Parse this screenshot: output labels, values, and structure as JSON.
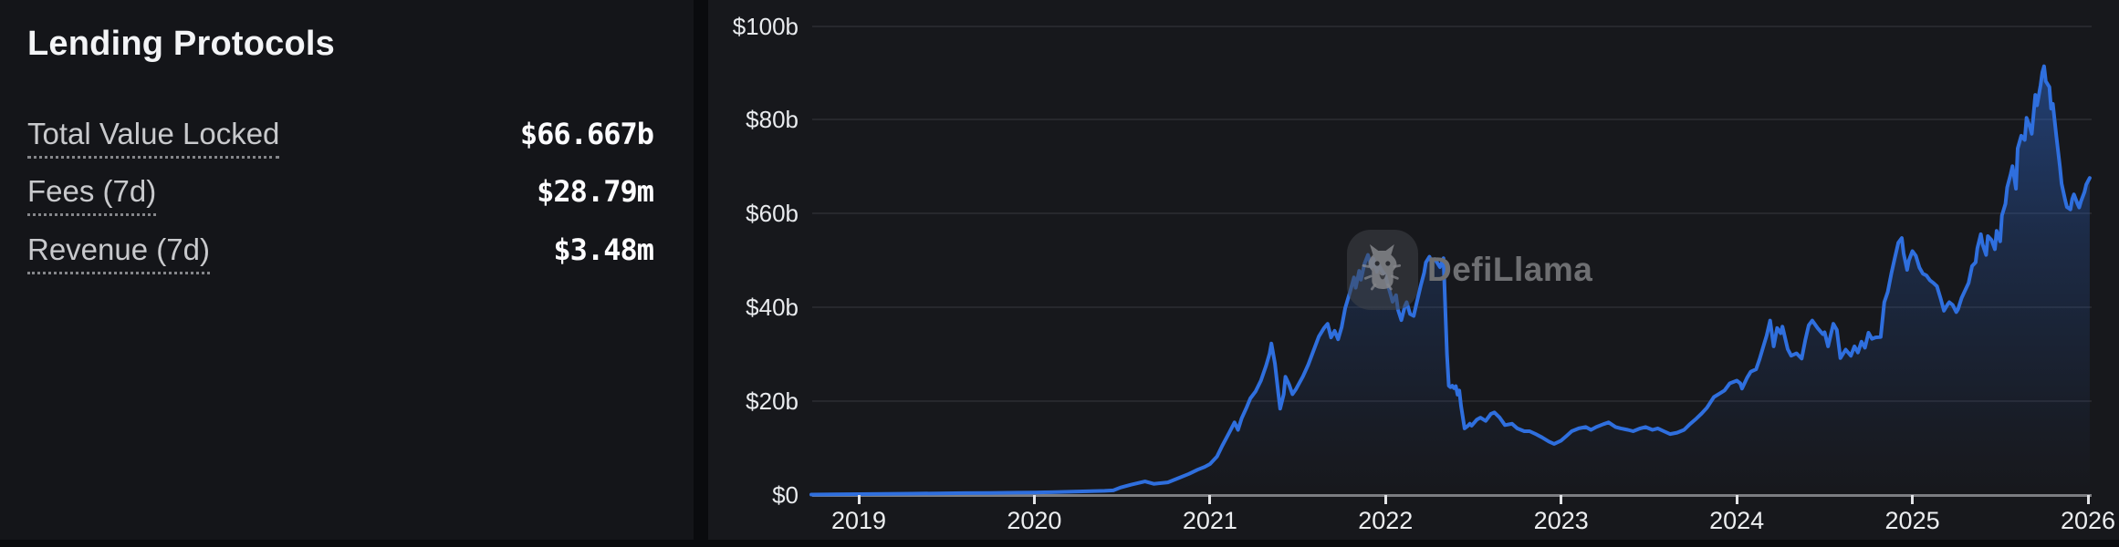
{
  "panel": {
    "title": "Lending Protocols",
    "stats": [
      {
        "label": "Total Value Locked",
        "value": "$66.667b"
      },
      {
        "label": "Fees (7d)",
        "value": "$28.79m"
      },
      {
        "label": "Revenue (7d)",
        "value": "$3.48m"
      }
    ]
  },
  "chart": {
    "watermark": "DefiLlama"
  },
  "chart_data": {
    "type": "area",
    "title": "",
    "xlabel": "",
    "ylabel": "",
    "series_name": "Total Value Locked",
    "unit": "USD billions",
    "xlim": [
      2018.73,
      2026.05
    ],
    "ylim": [
      0,
      100
    ],
    "grid": true,
    "legend": false,
    "colors": {
      "line": "#2f6fde",
      "fill_top": "rgba(47,111,222,0.50)",
      "fill_bottom": "rgba(47,111,222,0)",
      "gridline": "#27282d",
      "axis": "#7c7d81",
      "tick": "#e3e4e7"
    },
    "y_ticks": [
      {
        "value": 0,
        "label": "$0"
      },
      {
        "value": 20,
        "label": "$20b"
      },
      {
        "value": 40,
        "label": "$40b"
      },
      {
        "value": 60,
        "label": "$60b"
      },
      {
        "value": 80,
        "label": "$80b"
      },
      {
        "value": 100,
        "label": "$100b"
      }
    ],
    "x_ticks": [
      {
        "value": 2019,
        "label": "2019"
      },
      {
        "value": 2020,
        "label": "2020"
      },
      {
        "value": 2021,
        "label": "2021"
      },
      {
        "value": 2022,
        "label": "2022"
      },
      {
        "value": 2023,
        "label": "2023"
      },
      {
        "value": 2024,
        "label": "2024"
      },
      {
        "value": 2025,
        "label": "2025"
      },
      {
        "value": 2026,
        "label": "2026"
      }
    ],
    "points": [
      [
        2018.73,
        0.1
      ],
      [
        2018.85,
        0.15
      ],
      [
        2019.0,
        0.2
      ],
      [
        2019.15,
        0.25
      ],
      [
        2019.3,
        0.3
      ],
      [
        2019.45,
        0.35
      ],
      [
        2019.6,
        0.4
      ],
      [
        2019.75,
        0.45
      ],
      [
        2019.9,
        0.5
      ],
      [
        2020.0,
        0.55
      ],
      [
        2020.1,
        0.6
      ],
      [
        2020.2,
        0.7
      ],
      [
        2020.3,
        0.8
      ],
      [
        2020.4,
        0.9
      ],
      [
        2020.45,
        1.0
      ],
      [
        2020.49,
        1.6
      ],
      [
        2020.55,
        2.2
      ],
      [
        2020.63,
        2.9
      ],
      [
        2020.68,
        2.4
      ],
      [
        2020.76,
        2.7
      ],
      [
        2020.82,
        3.6
      ],
      [
        2020.88,
        4.5
      ],
      [
        2020.93,
        5.4
      ],
      [
        2020.97,
        6.0
      ],
      [
        2021.0,
        6.6
      ],
      [
        2021.04,
        8.2
      ],
      [
        2021.07,
        10.5
      ],
      [
        2021.11,
        13.3
      ],
      [
        2021.14,
        15.5
      ],
      [
        2021.16,
        13.9
      ],
      [
        2021.18,
        16.3
      ],
      [
        2021.21,
        18.8
      ],
      [
        2021.23,
        20.6
      ],
      [
        2021.26,
        22.1
      ],
      [
        2021.29,
        24.4
      ],
      [
        2021.32,
        27.6
      ],
      [
        2021.34,
        30.2
      ],
      [
        2021.35,
        32.3
      ],
      [
        2021.37,
        28.0
      ],
      [
        2021.39,
        21.5
      ],
      [
        2021.4,
        18.4
      ],
      [
        2021.42,
        21.5
      ],
      [
        2021.43,
        25.2
      ],
      [
        2021.45,
        23.6
      ],
      [
        2021.47,
        21.5
      ],
      [
        2021.49,
        22.6
      ],
      [
        2021.53,
        25.3
      ],
      [
        2021.56,
        27.8
      ],
      [
        2021.59,
        30.8
      ],
      [
        2021.62,
        33.8
      ],
      [
        2021.65,
        35.6
      ],
      [
        2021.67,
        36.5
      ],
      [
        2021.69,
        33.6
      ],
      [
        2021.71,
        35.0
      ],
      [
        2021.73,
        33.2
      ],
      [
        2021.75,
        35.8
      ],
      [
        2021.77,
        39.8
      ],
      [
        2021.8,
        43.6
      ],
      [
        2021.82,
        46.4
      ],
      [
        2021.83,
        44.2
      ],
      [
        2021.85,
        47.8
      ],
      [
        2021.86,
        45.9
      ],
      [
        2021.88,
        49.3
      ],
      [
        2021.9,
        51.2
      ],
      [
        2021.92,
        48.6
      ],
      [
        2021.93,
        50.4
      ],
      [
        2021.95,
        47.6
      ],
      [
        2021.96,
        49.1
      ],
      [
        2021.98,
        47.8
      ],
      [
        2022.0,
        46.8
      ],
      [
        2022.02,
        43.9
      ],
      [
        2022.04,
        41.2
      ],
      [
        2022.06,
        42.6
      ],
      [
        2022.07,
        39.6
      ],
      [
        2022.09,
        37.3
      ],
      [
        2022.11,
        40.3
      ],
      [
        2022.12,
        41.1
      ],
      [
        2022.14,
        38.6
      ],
      [
        2022.16,
        38.2
      ],
      [
        2022.18,
        41.4
      ],
      [
        2022.2,
        44.6
      ],
      [
        2022.22,
        47.4
      ],
      [
        2022.23,
        49.6
      ],
      [
        2022.25,
        50.8
      ],
      [
        2022.26,
        49.9
      ],
      [
        2022.28,
        50.3
      ],
      [
        2022.3,
        49.2
      ],
      [
        2022.31,
        48.6
      ],
      [
        2022.33,
        50.5
      ],
      [
        2022.34,
        40.0
      ],
      [
        2022.35,
        30.0
      ],
      [
        2022.36,
        23.3
      ],
      [
        2022.37,
        23.0
      ],
      [
        2022.38,
        23.3
      ],
      [
        2022.39,
        22.8
      ],
      [
        2022.4,
        23.2
      ],
      [
        2022.41,
        21.4
      ],
      [
        2022.42,
        22.3
      ],
      [
        2022.43,
        19.0
      ],
      [
        2022.45,
        14.2
      ],
      [
        2022.47,
        14.8
      ],
      [
        2022.48,
        15.2
      ],
      [
        2022.49,
        14.8
      ],
      [
        2022.52,
        16.1
      ],
      [
        2022.54,
        16.5
      ],
      [
        2022.57,
        15.8
      ],
      [
        2022.6,
        17.3
      ],
      [
        2022.62,
        17.6
      ],
      [
        2022.65,
        16.5
      ],
      [
        2022.68,
        14.9
      ],
      [
        2022.72,
        15.2
      ],
      [
        2022.75,
        14.2
      ],
      [
        2022.79,
        13.6
      ],
      [
        2022.82,
        13.6
      ],
      [
        2022.86,
        12.9
      ],
      [
        2022.89,
        12.3
      ],
      [
        2022.93,
        11.4
      ],
      [
        2022.96,
        10.9
      ],
      [
        2023.0,
        11.6
      ],
      [
        2023.03,
        12.6
      ],
      [
        2023.06,
        13.6
      ],
      [
        2023.1,
        14.2
      ],
      [
        2023.14,
        14.5
      ],
      [
        2023.17,
        13.9
      ],
      [
        2023.2,
        14.5
      ],
      [
        2023.24,
        15.1
      ],
      [
        2023.27,
        15.5
      ],
      [
        2023.31,
        14.5
      ],
      [
        2023.34,
        14.2
      ],
      [
        2023.38,
        13.9
      ],
      [
        2023.41,
        13.6
      ],
      [
        2023.45,
        14.2
      ],
      [
        2023.48,
        14.5
      ],
      [
        2023.52,
        13.9
      ],
      [
        2023.55,
        14.2
      ],
      [
        2023.59,
        13.5
      ],
      [
        2023.62,
        13.0
      ],
      [
        2023.66,
        13.3
      ],
      [
        2023.7,
        13.9
      ],
      [
        2023.73,
        15.0
      ],
      [
        2023.77,
        16.3
      ],
      [
        2023.8,
        17.4
      ],
      [
        2023.83,
        18.6
      ],
      [
        2023.87,
        20.9
      ],
      [
        2023.9,
        21.6
      ],
      [
        2023.93,
        22.3
      ],
      [
        2023.96,
        23.8
      ],
      [
        2024.0,
        24.4
      ],
      [
        2024.02,
        23.8
      ],
      [
        2024.03,
        22.7
      ],
      [
        2024.06,
        25.1
      ],
      [
        2024.08,
        26.3
      ],
      [
        2024.11,
        26.8
      ],
      [
        2024.13,
        29.0
      ],
      [
        2024.15,
        31.5
      ],
      [
        2024.17,
        34.0
      ],
      [
        2024.19,
        37.2
      ],
      [
        2024.21,
        31.7
      ],
      [
        2024.23,
        35.6
      ],
      [
        2024.25,
        34.5
      ],
      [
        2024.26,
        35.9
      ],
      [
        2024.29,
        31.1
      ],
      [
        2024.31,
        29.7
      ],
      [
        2024.34,
        30.2
      ],
      [
        2024.37,
        29.1
      ],
      [
        2024.39,
        33.0
      ],
      [
        2024.41,
        36.2
      ],
      [
        2024.43,
        37.2
      ],
      [
        2024.46,
        35.6
      ],
      [
        2024.49,
        34.3
      ],
      [
        2024.5,
        34.7
      ],
      [
        2024.52,
        31.7
      ],
      [
        2024.55,
        36.5
      ],
      [
        2024.57,
        35.2
      ],
      [
        2024.59,
        29.2
      ],
      [
        2024.62,
        31.0
      ],
      [
        2024.65,
        29.7
      ],
      [
        2024.67,
        31.7
      ],
      [
        2024.69,
        30.4
      ],
      [
        2024.71,
        32.7
      ],
      [
        2024.73,
        31.4
      ],
      [
        2024.75,
        34.6
      ],
      [
        2024.77,
        33.3
      ],
      [
        2024.79,
        33.6
      ],
      [
        2024.82,
        33.7
      ],
      [
        2024.84,
        41.1
      ],
      [
        2024.86,
        43.3
      ],
      [
        2024.88,
        47.2
      ],
      [
        2024.9,
        50.5
      ],
      [
        2024.92,
        53.8
      ],
      [
        2024.94,
        54.8
      ],
      [
        2024.95,
        51.5
      ],
      [
        2024.97,
        48.0
      ],
      [
        2024.98,
        50.0
      ],
      [
        2025.0,
        52.0
      ],
      [
        2025.02,
        51.0
      ],
      [
        2025.04,
        48.5
      ],
      [
        2025.06,
        47.2
      ],
      [
        2025.08,
        46.8
      ],
      [
        2025.1,
        45.8
      ],
      [
        2025.12,
        45.2
      ],
      [
        2025.14,
        44.5
      ],
      [
        2025.16,
        42.0
      ],
      [
        2025.18,
        39.3
      ],
      [
        2025.2,
        40.6
      ],
      [
        2025.21,
        41.1
      ],
      [
        2025.23,
        40.5
      ],
      [
        2025.25,
        39.0
      ],
      [
        2025.26,
        39.6
      ],
      [
        2025.28,
        42.0
      ],
      [
        2025.3,
        43.6
      ],
      [
        2025.32,
        45.2
      ],
      [
        2025.34,
        48.8
      ],
      [
        2025.36,
        49.6
      ],
      [
        2025.37,
        52.6
      ],
      [
        2025.39,
        55.6
      ],
      [
        2025.4,
        53.4
      ],
      [
        2025.42,
        51.2
      ],
      [
        2025.43,
        55.2
      ],
      [
        2025.45,
        54.4
      ],
      [
        2025.47,
        52.4
      ],
      [
        2025.48,
        56.3
      ],
      [
        2025.5,
        54.1
      ],
      [
        2025.51,
        59.6
      ],
      [
        2025.53,
        62.1
      ],
      [
        2025.54,
        65.6
      ],
      [
        2025.56,
        68.4
      ],
      [
        2025.57,
        70.1
      ],
      [
        2025.59,
        65.3
      ],
      [
        2025.6,
        73.9
      ],
      [
        2025.62,
        76.6
      ],
      [
        2025.64,
        75.7
      ],
      [
        2025.65,
        80.4
      ],
      [
        2025.67,
        78.4
      ],
      [
        2025.68,
        77.0
      ],
      [
        2025.7,
        85.3
      ],
      [
        2025.71,
        83.1
      ],
      [
        2025.73,
        87.4
      ],
      [
        2025.74,
        90.1
      ],
      [
        2025.75,
        91.4
      ],
      [
        2025.76,
        88.2
      ],
      [
        2025.78,
        87.0
      ],
      [
        2025.79,
        82.4
      ],
      [
        2025.8,
        83.4
      ],
      [
        2025.82,
        76.4
      ],
      [
        2025.84,
        70.1
      ],
      [
        2025.85,
        66.4
      ],
      [
        2025.87,
        62.9
      ],
      [
        2025.88,
        61.4
      ],
      [
        2025.9,
        60.9
      ],
      [
        2025.91,
        63.1
      ],
      [
        2025.92,
        64.1
      ],
      [
        2025.94,
        62.1
      ],
      [
        2025.95,
        61.3
      ],
      [
        2025.96,
        62.6
      ],
      [
        2025.98,
        64.6
      ],
      [
        2025.99,
        66.2
      ],
      [
        2026.01,
        67.6
      ]
    ]
  }
}
